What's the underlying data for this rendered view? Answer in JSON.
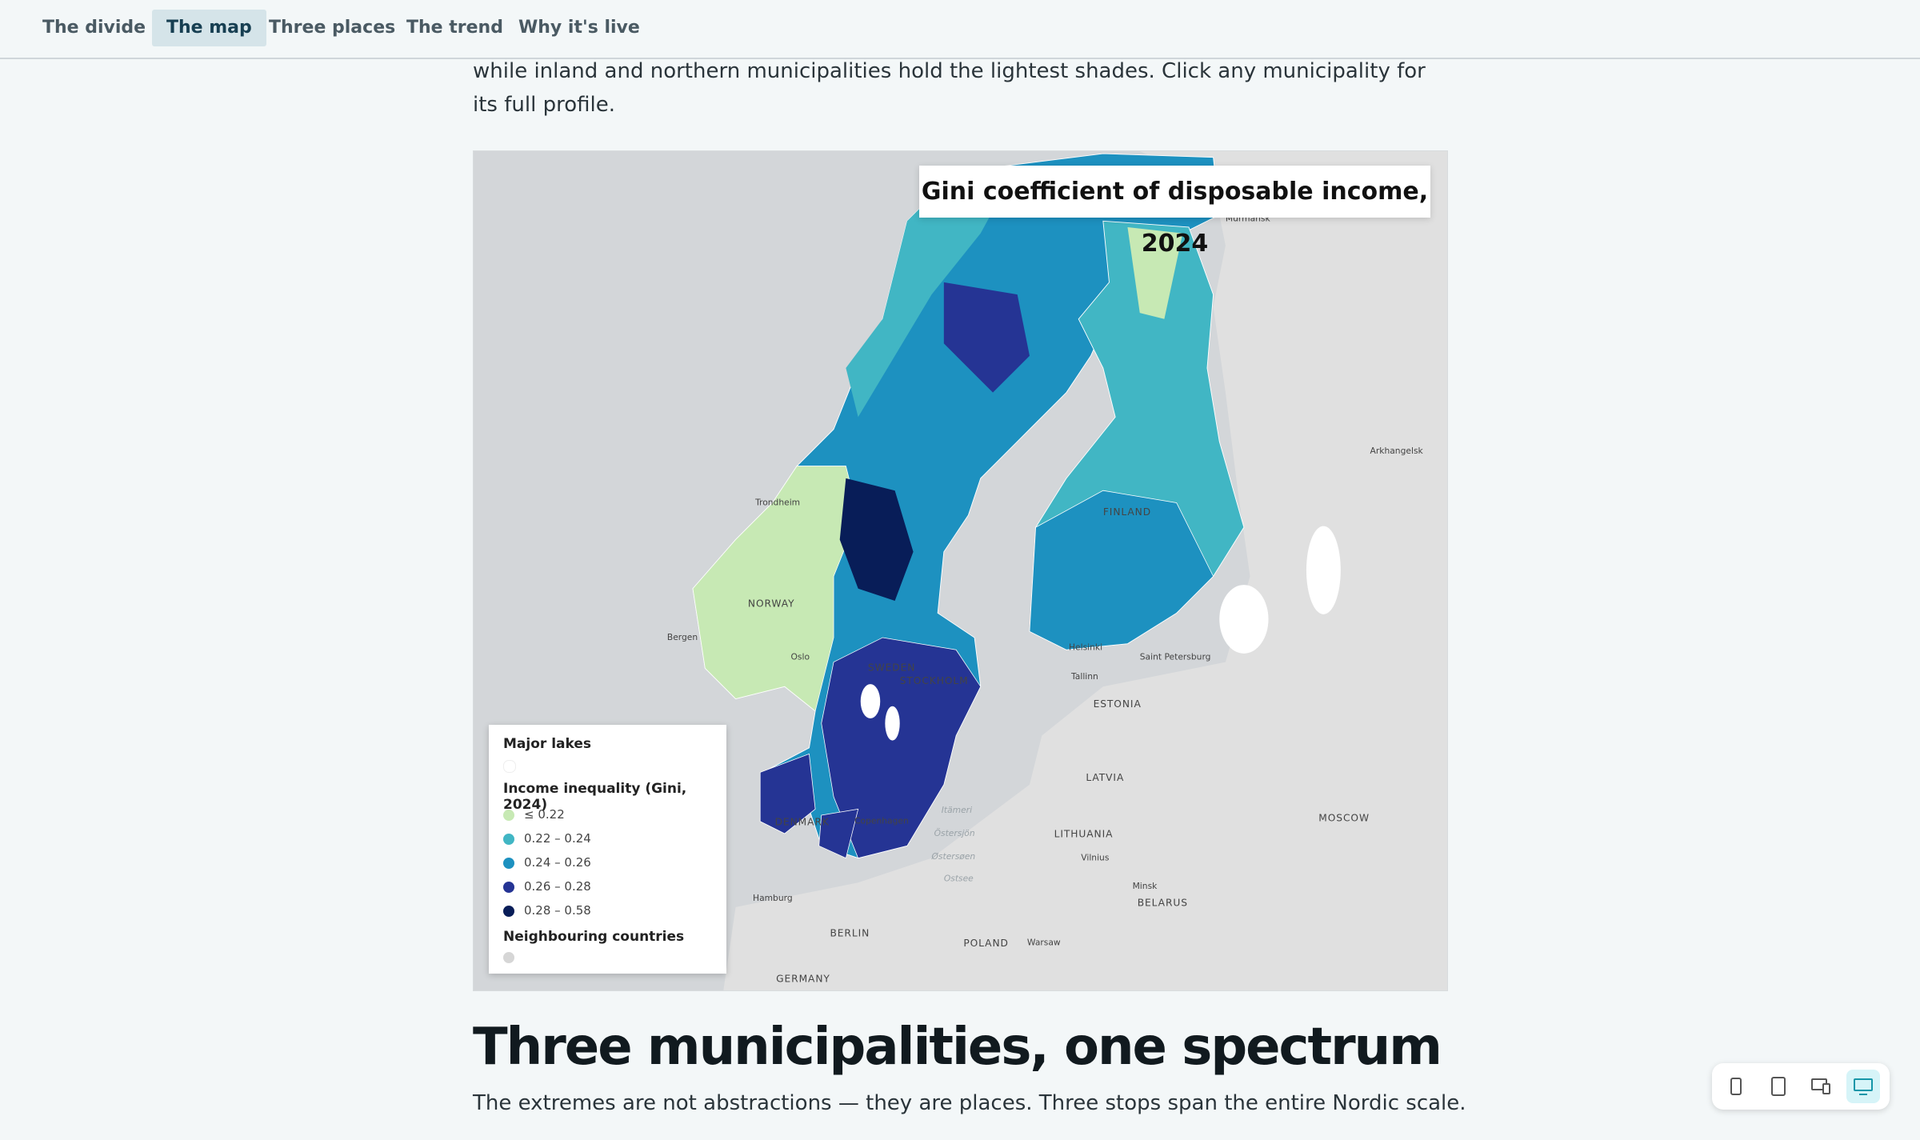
{
  "nav": {
    "items": [
      "The divide",
      "The map",
      "Three places",
      "The trend",
      "Why it's live"
    ],
    "active": 1
  },
  "intro": "while inland and northern municipalities hold the lightest shades. Click any municipality for its full profile.",
  "map": {
    "title": "Gini coefficient of disposable income, 2024",
    "places": [
      "Murmansk",
      "Arkhangelsk",
      "Trondheim",
      "FINLAND",
      "NORWAY",
      "Bergen",
      "Oslo",
      "SWEDEN",
      "STOCKHOLM",
      "Helsinki",
      "Tallinn",
      "Saint Petersburg",
      "ESTONIA",
      "LATVIA",
      "LITHUANIA",
      "Vilnius",
      "Minsk",
      "BELARUS",
      "MOSCOW",
      "DENMARK",
      "Copenhagen",
      "Hamburg",
      "BERLIN",
      "POLAND",
      "Warsaw",
      "GERMANY",
      "Itämeri",
      "Östersjön",
      "Østersøen",
      "Ostsee"
    ],
    "legend": {
      "lakes": "Major lakes",
      "title": "Income inequality (Gini, 2024)",
      "classes": [
        {
          "label": "≤ 0.22",
          "color": "#c7e9b4"
        },
        {
          "label": "0.22 – 0.24",
          "color": "#41b6c4"
        },
        {
          "label": "0.24 – 0.26",
          "color": "#1d91c0"
        },
        {
          "label": "0.26 – 0.28",
          "color": "#253494"
        },
        {
          "label": "0.28 – 0.58",
          "color": "#081d58"
        }
      ],
      "neighbours": "Neighbouring countries"
    }
  },
  "section": {
    "heading": "Three municipalities, one spectrum",
    "text": "The extremes are not abstractions — they are places. Three stops span the entire Nordic scale."
  }
}
